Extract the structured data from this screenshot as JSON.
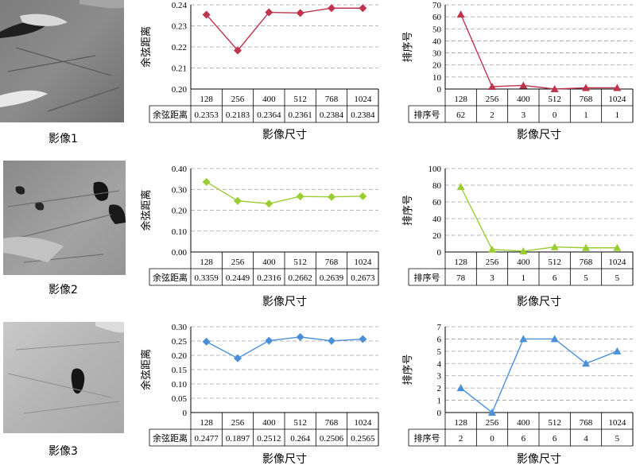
{
  "images": [
    {
      "caption": "影像1"
    },
    {
      "caption": "影像2"
    },
    {
      "caption": "影像3"
    }
  ],
  "xlabel": "影像尺寸",
  "chart_data": [
    {
      "type": "line",
      "panel": "row1-cosine",
      "color": "#c0334d",
      "marker": "diamond",
      "ylabel": "余弦距离",
      "ylim": [
        0.2,
        0.24
      ],
      "yticks": [
        "0.20",
        "0.21",
        "0.22",
        "0.23",
        "0.24"
      ],
      "categories": [
        "128",
        "256",
        "400",
        "512",
        "768",
        "1024"
      ],
      "table_row_label": "余弦距离",
      "table_values": [
        "0.2353",
        "0.2183",
        "0.2364",
        "0.2361",
        "0.2384",
        "0.2384"
      ],
      "values": [
        0.2353,
        0.2183,
        0.2364,
        0.2361,
        0.2384,
        0.2384
      ]
    },
    {
      "type": "line",
      "panel": "row1-rank",
      "color": "#c0334d",
      "marker": "triangle",
      "ylabel": "排序号",
      "ylim": [
        0,
        70
      ],
      "yticks": [
        "0",
        "10",
        "20",
        "30",
        "40",
        "50",
        "60",
        "70"
      ],
      "categories": [
        "128",
        "256",
        "400",
        "512",
        "768",
        "1024"
      ],
      "table_row_label": "排序号",
      "table_values": [
        "62",
        "2",
        "3",
        "0",
        "1",
        "1"
      ],
      "values": [
        62,
        2,
        3,
        0,
        1,
        1
      ]
    },
    {
      "type": "line",
      "panel": "row2-cosine",
      "color": "#9acd32",
      "marker": "diamond",
      "ylabel": "余弦距离",
      "ylim": [
        0,
        0.4
      ],
      "yticks": [
        "0.00",
        "0.10",
        "0.20",
        "0.30",
        "0.40"
      ],
      "categories": [
        "128",
        "256",
        "400",
        "512",
        "768",
        "1024"
      ],
      "table_row_label": "余弦距离",
      "table_values": [
        "0.3359",
        "0.2449",
        "0.2316",
        "0.2662",
        "0.2639",
        "0.2673"
      ],
      "values": [
        0.3359,
        0.2449,
        0.2316,
        0.2662,
        0.2639,
        0.2673
      ]
    },
    {
      "type": "line",
      "panel": "row2-rank",
      "color": "#9acd32",
      "marker": "triangle",
      "ylabel": "排序号",
      "ylim": [
        0,
        100
      ],
      "yticks": [
        "0",
        "20",
        "40",
        "60",
        "80",
        "100"
      ],
      "categories": [
        "128",
        "256",
        "400",
        "512",
        "768",
        "1024"
      ],
      "table_row_label": "排序号",
      "table_values": [
        "78",
        "3",
        "1",
        "6",
        "5",
        "5"
      ],
      "values": [
        78,
        3,
        1,
        6,
        5,
        5
      ]
    },
    {
      "type": "line",
      "panel": "row3-cosine",
      "color": "#4a90d9",
      "marker": "diamond",
      "ylabel": "余弦距离",
      "ylim": [
        0,
        0.3
      ],
      "yticks": [
        "0",
        "0.05",
        "0.10",
        "0.15",
        "0.20",
        "0.25",
        "0.30"
      ],
      "categories": [
        "128",
        "256",
        "400",
        "512",
        "768",
        "1024"
      ],
      "table_row_label": "余弦距离",
      "table_values": [
        "0.2477",
        "0.1897",
        "0.2512",
        "0.264",
        "0.2506",
        "0.2565"
      ],
      "values": [
        0.2477,
        0.1897,
        0.2512,
        0.264,
        0.2506,
        0.2565
      ]
    },
    {
      "type": "line",
      "panel": "row3-rank",
      "color": "#4a90d9",
      "marker": "triangle",
      "ylabel": "排序号",
      "ylim": [
        0,
        7
      ],
      "yticks": [
        "0",
        "1",
        "2",
        "3",
        "4",
        "5",
        "6",
        "7"
      ],
      "categories": [
        "128",
        "256",
        "400",
        "512",
        "768",
        "1024"
      ],
      "table_row_label": "排序号",
      "table_values": [
        "2",
        "0",
        "6",
        "6",
        "4",
        "5"
      ],
      "values": [
        2,
        0,
        6,
        6,
        4,
        5
      ]
    }
  ]
}
